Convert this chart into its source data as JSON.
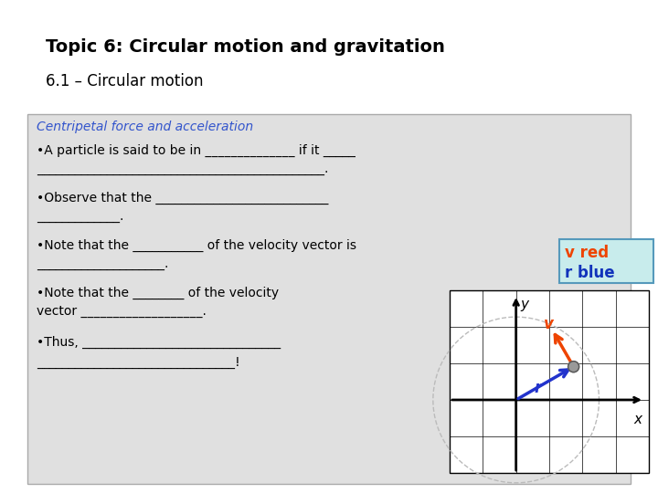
{
  "title_bold": "Topic 6: Circular motion and gravitation",
  "title_normal": "6.1 – Circular motion",
  "section_title": "Centripetal force and acceleration",
  "section_title_color": "#3355cc",
  "bullet1_1": "•A particle is said to be in ______________ if it _____",
  "bullet1_2": "_____________________________________________.",
  "bullet2_1": "•Observe that the ___________________________",
  "bullet2_2": "_____________.",
  "bullet3_1": "•Note that the ___________ of the velocity vector is",
  "bullet3_2": "____________________.",
  "bullet4_1": "•Note that the ________ of the velocity",
  "bullet4_2": "vector ___________________.",
  "bullet5_1": "•Thus, _______________________________",
  "bullet5_2": "_______________________________!",
  "legend_bg": "#c8ecec",
  "legend_border": "#5599bb",
  "legend_text1": "v red",
  "legend_text2": "r blue",
  "legend_v_color": "#ee4400",
  "legend_r_color": "#1133bb",
  "v_arrow_color": "#ee4400",
  "r_arrow_color": "#2233cc",
  "particle_color": "#999999",
  "gray_box_color": "#e0e0e0",
  "title_fontsize": 14,
  "subtitle_fontsize": 12,
  "section_fontsize": 10,
  "bullet_fontsize": 10
}
